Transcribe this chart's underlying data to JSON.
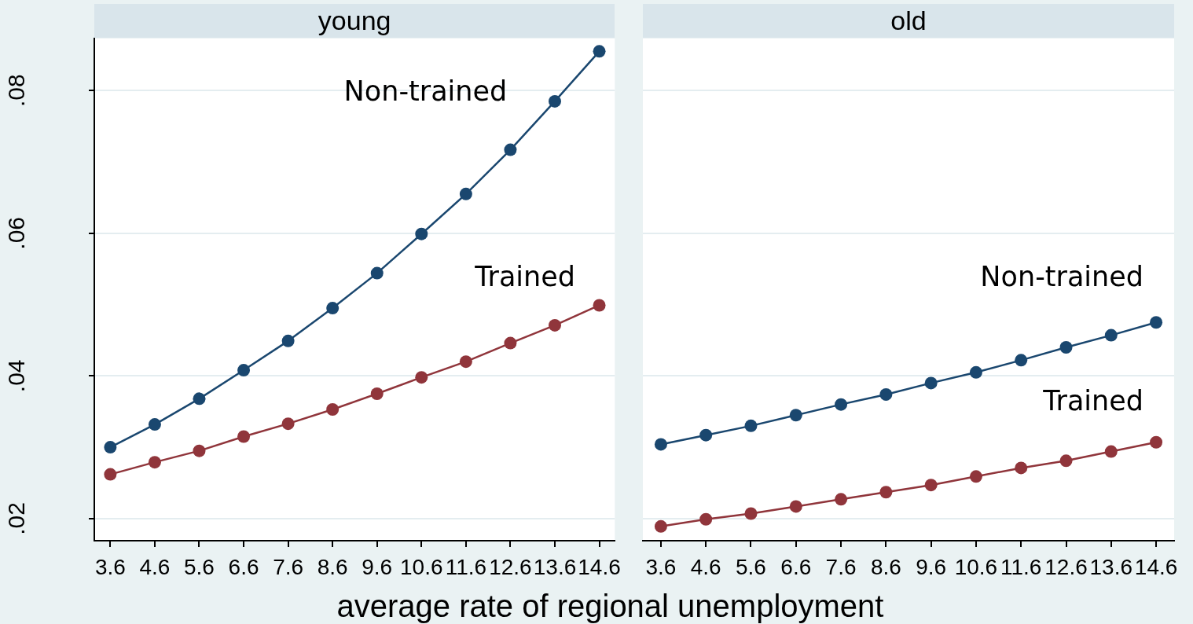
{
  "chart_data": [
    {
      "type": "line",
      "title": "young",
      "xlabel": "average rate of regional unemployment",
      "x": [
        3.6,
        4.6,
        5.6,
        6.6,
        7.6,
        8.6,
        9.6,
        10.6,
        11.6,
        12.6,
        13.6,
        14.6
      ],
      "xlim": [
        3.24,
        14.95
      ],
      "xticks": [
        3.6,
        4.6,
        5.6,
        6.6,
        7.6,
        8.6,
        9.6,
        10.6,
        11.6,
        12.6,
        13.6,
        14.6
      ],
      "ylim": [
        0.0169,
        0.0873
      ],
      "yticks": [
        {
          "value": 0.02,
          "label": ".02"
        },
        {
          "value": 0.04,
          "label": ".04"
        },
        {
          "value": 0.06,
          "label": ".06"
        },
        {
          "value": 0.08,
          "label": ".08"
        }
      ],
      "grid": "y",
      "marker": "circle",
      "series": [
        {
          "name": "Non-trained",
          "color": "#1a476f",
          "values": [
            0.03,
            0.0332,
            0.0368,
            0.0408,
            0.0449,
            0.0495,
            0.0544,
            0.0599,
            0.0655,
            0.0717,
            0.0785,
            0.0855
          ]
        },
        {
          "name": "Trained",
          "color": "#90353b",
          "values": [
            0.0262,
            0.0279,
            0.0295,
            0.0315,
            0.0333,
            0.0353,
            0.0375,
            0.0398,
            0.042,
            0.0446,
            0.0471,
            0.0499
          ]
        }
      ]
    },
    {
      "type": "line",
      "title": "old",
      "x": [
        3.6,
        4.6,
        5.6,
        6.6,
        7.6,
        8.6,
        9.6,
        10.6,
        11.6,
        12.6,
        13.6,
        14.6
      ],
      "xlim": [
        3.2,
        15.0
      ],
      "xticks": [
        3.6,
        4.6,
        5.6,
        6.6,
        7.6,
        8.6,
        9.6,
        10.6,
        11.6,
        12.6,
        13.6,
        14.6
      ],
      "ylim": [
        0.0169,
        0.0873
      ],
      "yticks": [
        0.02,
        0.04,
        0.06,
        0.08
      ],
      "tick_labels": "x",
      "grid": "y",
      "marker": "circle",
      "series": [
        {
          "name": "Non-trained",
          "color": "#1a476f",
          "values": [
            0.0304,
            0.0317,
            0.033,
            0.0345,
            0.036,
            0.0374,
            0.039,
            0.0405,
            0.0422,
            0.044,
            0.0457,
            0.0475
          ]
        },
        {
          "name": "Trained",
          "color": "#90353b",
          "values": [
            0.0189,
            0.0199,
            0.0207,
            0.0217,
            0.0227,
            0.0237,
            0.0247,
            0.0259,
            0.0271,
            0.0281,
            0.0294,
            0.0307
          ]
        }
      ]
    }
  ]
}
